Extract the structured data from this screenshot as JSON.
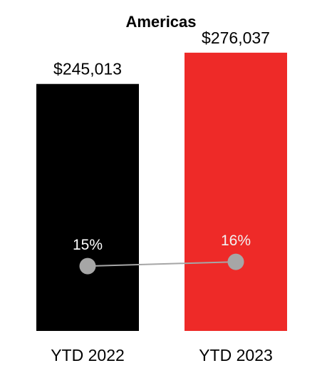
{
  "chart_data": {
    "type": "bar",
    "title": "Americas",
    "categories": [
      "YTD 2022",
      "YTD 2023"
    ],
    "values": [
      245013,
      276037
    ],
    "value_labels": [
      "$245,013",
      "$276,037"
    ],
    "bar_colors": [
      "#000000",
      "#ee2a28"
    ],
    "xlabel": "",
    "ylabel": "",
    "ylim": [
      0,
      300000
    ],
    "grid": false,
    "line_series": {
      "values": [
        15,
        16
      ],
      "labels": [
        "15%",
        "16%"
      ],
      "ylim": [
        0,
        70
      ],
      "marker_color": "#a6a6a6",
      "line_color": "#a6a6a6"
    }
  }
}
